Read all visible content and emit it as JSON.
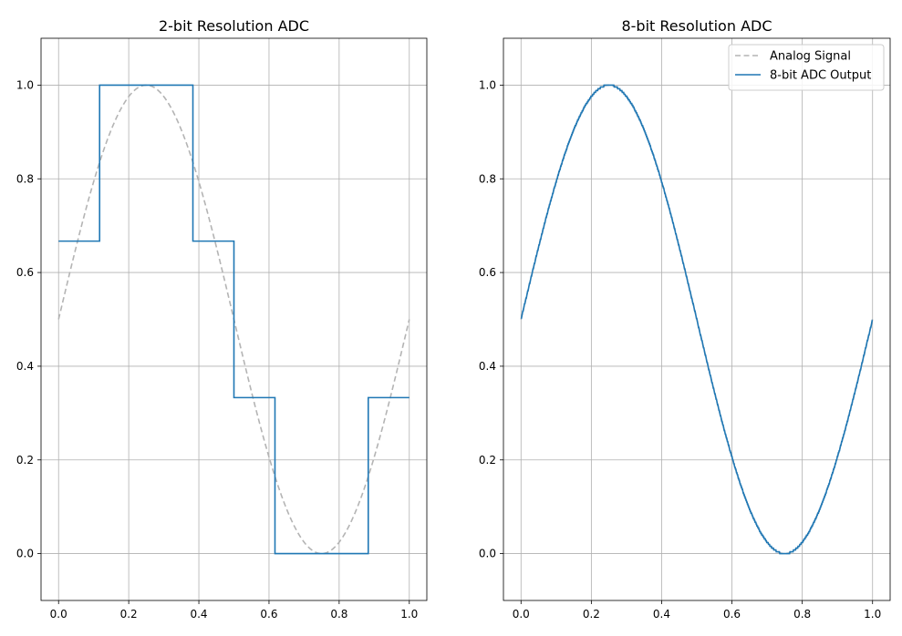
{
  "chart_data": [
    {
      "type": "line",
      "title": "2-bit Resolution ADC",
      "xlabel": "",
      "ylabel": "",
      "xlim": [
        -0.05,
        1.05
      ],
      "ylim": [
        -0.1,
        1.1
      ],
      "xticks": [
        "0.0",
        "0.2",
        "0.4",
        "0.6",
        "0.8",
        "1.0"
      ],
      "yticks": [
        "0.0",
        "0.2",
        "0.4",
        "0.6",
        "0.8",
        "1.0"
      ],
      "grid": true,
      "legend": false,
      "series": [
        {
          "role": "analog",
          "function": "0.5 + 0.5*sin(2*pi*x)",
          "x_range": [
            0,
            1
          ],
          "style": "dashed",
          "color": "#b4b4b4"
        },
        {
          "role": "adc",
          "step": true,
          "x": [
            0.0,
            0.117,
            0.117,
            0.383,
            0.383,
            0.5,
            0.5,
            0.617,
            0.617,
            0.883,
            0.883,
            1.0
          ],
          "y": [
            0.667,
            0.667,
            1.0,
            1.0,
            0.667,
            0.667,
            0.333,
            0.333,
            0.0,
            0.0,
            0.333,
            0.333
          ],
          "style": "solid",
          "color": "#1f77b4"
        }
      ]
    },
    {
      "type": "line",
      "title": "8-bit Resolution ADC",
      "xlabel": "",
      "ylabel": "",
      "xlim": [
        -0.05,
        1.05
      ],
      "ylim": [
        -0.1,
        1.1
      ],
      "xticks": [
        "0.0",
        "0.2",
        "0.4",
        "0.6",
        "0.8",
        "1.0"
      ],
      "yticks": [
        "0.0",
        "0.2",
        "0.4",
        "0.6",
        "0.8",
        "1.0"
      ],
      "grid": true,
      "legend": "top-right",
      "series": [
        {
          "role": "analog",
          "name": "Analog Signal",
          "function": "0.5 + 0.5*sin(2*pi*x)",
          "x_range": [
            0,
            1
          ],
          "style": "dashed",
          "color": "#b4b4b4"
        },
        {
          "role": "adc",
          "name": "8-bit ADC Output",
          "function": "round((0.5 + 0.5*sin(2*pi*x))*255)/255",
          "x_range": [
            0,
            1
          ],
          "style": "solid",
          "color": "#1f77b4"
        }
      ]
    }
  ]
}
